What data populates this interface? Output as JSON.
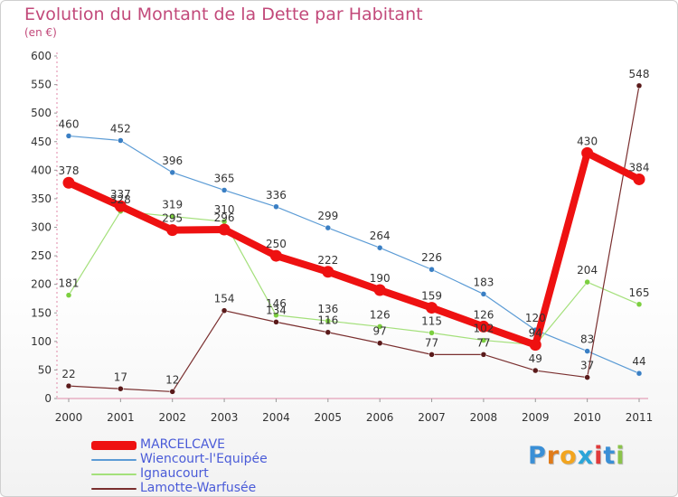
{
  "title": "Evolution du Montant de la Dette par Habitant",
  "subtitle": "(en €)",
  "logo": {
    "text": "Proxiti",
    "letters": [
      "P",
      "r",
      "o",
      "x",
      "i",
      "t",
      "i"
    ],
    "colors": [
      "#3a8fd6",
      "#e07b1a",
      "#f2a51f",
      "#2aa5d8",
      "#e03b3b",
      "#3a8fd6",
      "#8bc34a"
    ]
  },
  "chart_data": {
    "type": "line",
    "title": "Evolution du Montant de la Dette par Habitant",
    "ylabel": "(en €)",
    "xlabel": "",
    "ylim": [
      0,
      600
    ],
    "yticks": [
      0,
      50,
      100,
      150,
      200,
      250,
      300,
      350,
      400,
      450,
      500,
      550,
      600
    ],
    "categories": [
      "2000",
      "2001",
      "2002",
      "2003",
      "2004",
      "2005",
      "2006",
      "2007",
      "2008",
      "2009",
      "2010",
      "2011"
    ],
    "series": [
      {
        "name": "Wiencourt-l'Equipée",
        "color": "#5b9bd5",
        "marker": "#3a7fc4",
        "width": 1.2,
        "values": [
          460,
          452,
          396,
          365,
          336,
          299,
          264,
          226,
          183,
          120,
          83,
          44
        ]
      },
      {
        "name": "Ignaucourt",
        "color": "#a4e07b",
        "marker": "#7ccf3f",
        "width": 1.2,
        "values": [
          181,
          328,
          319,
          310,
          146,
          136,
          126,
          115,
          102,
          94,
          204,
          165
        ]
      },
      {
        "name": "Lamotte-Warfusée",
        "color": "#7a2f2f",
        "marker": "#5a1a1a",
        "width": 1.2,
        "values": [
          22,
          17,
          12,
          154,
          134,
          116,
          97,
          77,
          77,
          49,
          37,
          548
        ]
      },
      {
        "name": "MARCELCAVE",
        "color": "#ee1111",
        "marker": "#ee1111",
        "width": 8,
        "values": [
          378,
          337,
          295,
          296,
          250,
          222,
          190,
          159,
          126,
          94,
          430,
          384
        ]
      }
    ],
    "legend_order": [
      "MARCELCAVE",
      "Wiencourt-l'Equipée",
      "Ignaucourt",
      "Lamotte-Warfusée"
    ],
    "data_labels": {
      "Wiencourt-l'Equipée": [
        "460",
        "452",
        "396",
        "365",
        "336",
        "299",
        "264",
        "226",
        "183",
        "120",
        "83",
        "44"
      ],
      "Ignaucourt": [
        "181",
        "328",
        "319",
        "310",
        "146",
        "136",
        "126",
        "115",
        "102",
        "94",
        "204",
        "165"
      ],
      "Lamotte-Warfusée": [
        "22",
        "17",
        "12",
        "154",
        "134",
        "116",
        "97",
        "77",
        "77",
        "49",
        "37",
        "548"
      ],
      "MARCELCAVE": [
        "378",
        "337",
        "295",
        "296",
        "250",
        "222",
        "190",
        "159",
        "126",
        "94",
        "430",
        "384"
      ]
    }
  }
}
